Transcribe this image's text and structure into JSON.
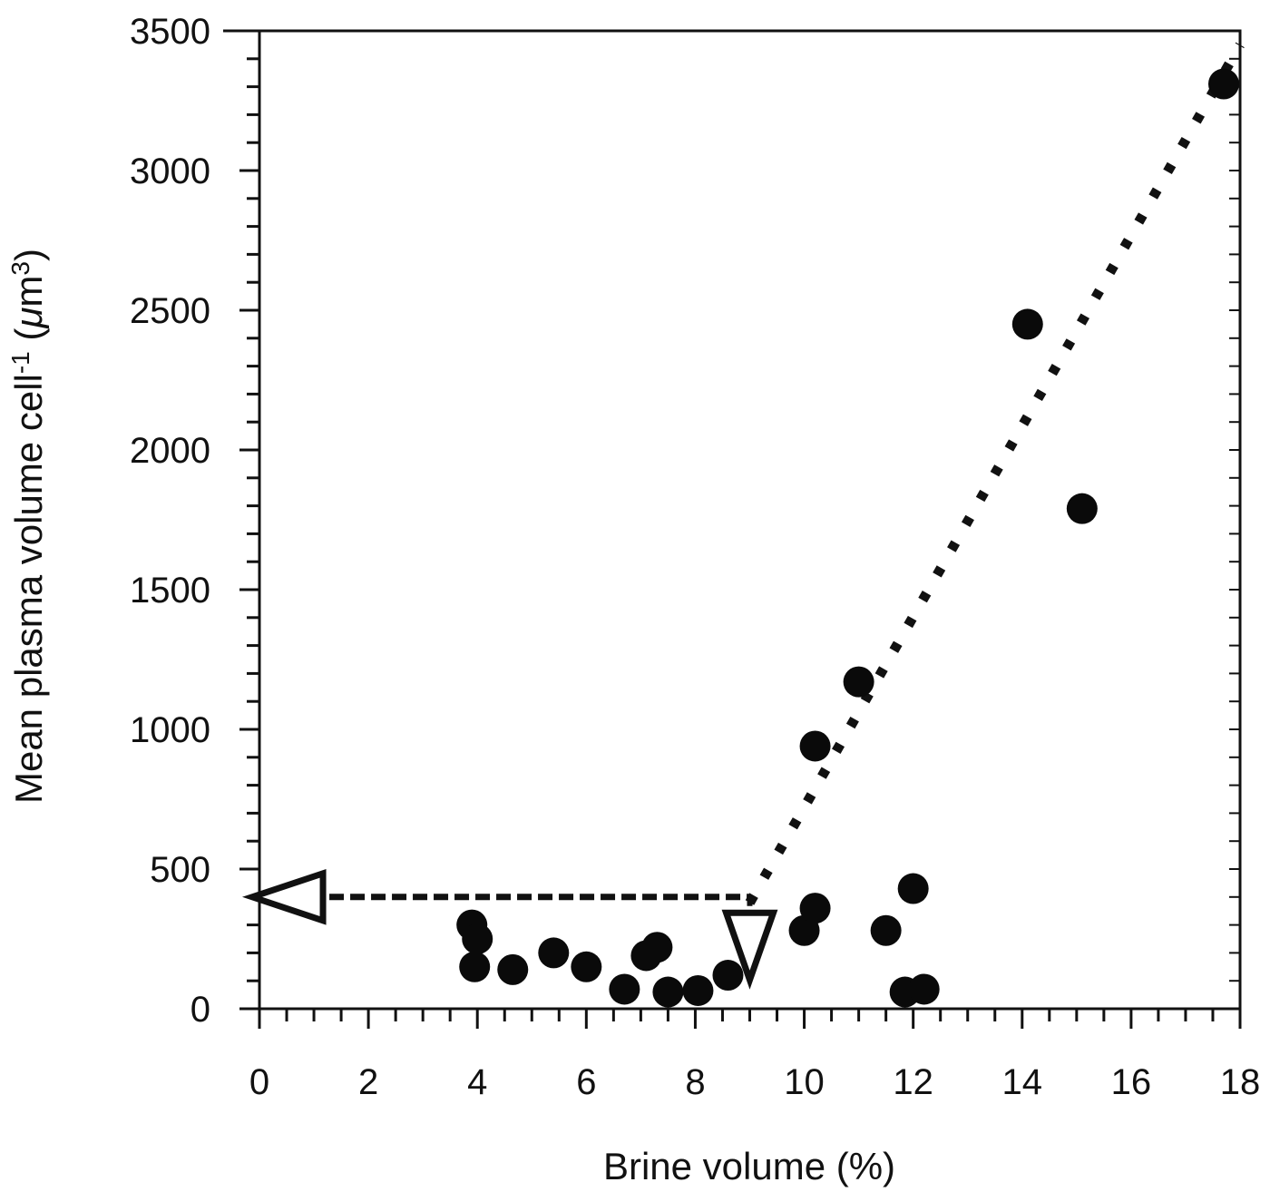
{
  "chart_data": {
    "type": "scatter",
    "xlabel": "Brine volume (%)",
    "ylabel_main": "Mean plasma volume cell",
    "ylabel_exp": "-1",
    "ylabel_unit_open": " (",
    "ylabel_mu": "μ",
    "ylabel_unit_m": "m",
    "ylabel_unit_sup": "3",
    "ylabel_unit_close": ")",
    "xlim": [
      0,
      18
    ],
    "ylim": [
      0,
      3500
    ],
    "x_ticks": [
      0,
      2,
      4,
      6,
      8,
      10,
      12,
      14,
      16,
      18
    ],
    "x_tick_labels": [
      "0",
      "2",
      "4",
      "6",
      "8",
      "10",
      "12",
      "14",
      "16",
      "18"
    ],
    "y_ticks": [
      0,
      500,
      1000,
      1500,
      2000,
      2500,
      3000,
      3500
    ],
    "y_tick_labels": [
      "0",
      "500",
      "1000",
      "1500",
      "2000",
      "2500",
      "3000",
      "3500"
    ],
    "grid": false,
    "points": [
      {
        "x": 3.9,
        "y": 300
      },
      {
        "x": 4.0,
        "y": 250
      },
      {
        "x": 3.95,
        "y": 150
      },
      {
        "x": 4.65,
        "y": 140
      },
      {
        "x": 5.4,
        "y": 200
      },
      {
        "x": 6.0,
        "y": 150
      },
      {
        "x": 6.7,
        "y": 70
      },
      {
        "x": 7.1,
        "y": 190
      },
      {
        "x": 7.3,
        "y": 220
      },
      {
        "x": 7.5,
        "y": 60
      },
      {
        "x": 8.05,
        "y": 65
      },
      {
        "x": 8.6,
        "y": 120
      },
      {
        "x": 10.0,
        "y": 280
      },
      {
        "x": 10.2,
        "y": 360
      },
      {
        "x": 10.2,
        "y": 940
      },
      {
        "x": 11.0,
        "y": 1170
      },
      {
        "x": 11.5,
        "y": 280
      },
      {
        "x": 12.0,
        "y": 430
      },
      {
        "x": 11.85,
        "y": 60
      },
      {
        "x": 12.2,
        "y": 70
      },
      {
        "x": 14.1,
        "y": 2450
      },
      {
        "x": 15.1,
        "y": 1790
      },
      {
        "x": 17.7,
        "y": 3310
      }
    ],
    "fit_line": {
      "style": "dotted",
      "x": [
        9.0,
        18.0
      ],
      "y": [
        380,
        3450
      ]
    },
    "threshold_line": {
      "style": "dashed",
      "x": [
        0.9,
        9.0
      ],
      "y": [
        400,
        400
      ]
    },
    "threshold_markers": [
      {
        "shape": "triangle-left-open",
        "x": 0.7,
        "y": 400
      },
      {
        "shape": "triangle-down-open",
        "x": 9.0,
        "y": 220
      }
    ],
    "threshold_vertical": {
      "x": 9.0,
      "y_from": 400,
      "y_to": 300
    }
  }
}
